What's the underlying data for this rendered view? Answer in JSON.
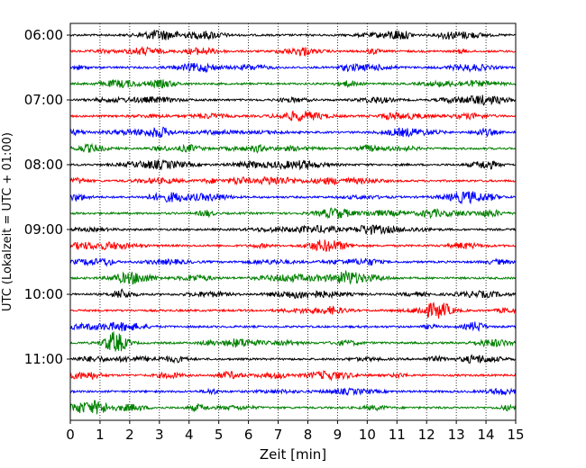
{
  "chart_data": {
    "type": "line",
    "title": "",
    "xlabel": "Zeit  [min]",
    "ylabel": "UTC (Lokalzeit = UTC + 01:00)",
    "xlim": [
      0,
      15
    ],
    "x_ticks": [
      "0",
      "1",
      "2",
      "3",
      "4",
      "5",
      "6",
      "7",
      "8",
      "9",
      "10",
      "11",
      "12",
      "13",
      "14",
      "15"
    ],
    "y_tick_labels": [
      "06:00",
      "07:00",
      "08:00",
      "09:00",
      "10:00",
      "11:00"
    ],
    "vertical_grid": "dotted",
    "trace_interval_minutes": 15,
    "trace_color_cycle": [
      "#000000",
      "#ff0000",
      "#0000ff",
      "#008000"
    ],
    "trace_start_times": [
      "06:00",
      "06:15",
      "06:30",
      "06:45",
      "07:00",
      "07:15",
      "07:30",
      "07:45",
      "08:00",
      "08:15",
      "08:30",
      "08:45",
      "09:00",
      "09:15",
      "09:30",
      "09:45",
      "10:00",
      "10:15",
      "10:30",
      "10:45",
      "11:00",
      "11:15",
      "11:30",
      "11:45"
    ]
  }
}
